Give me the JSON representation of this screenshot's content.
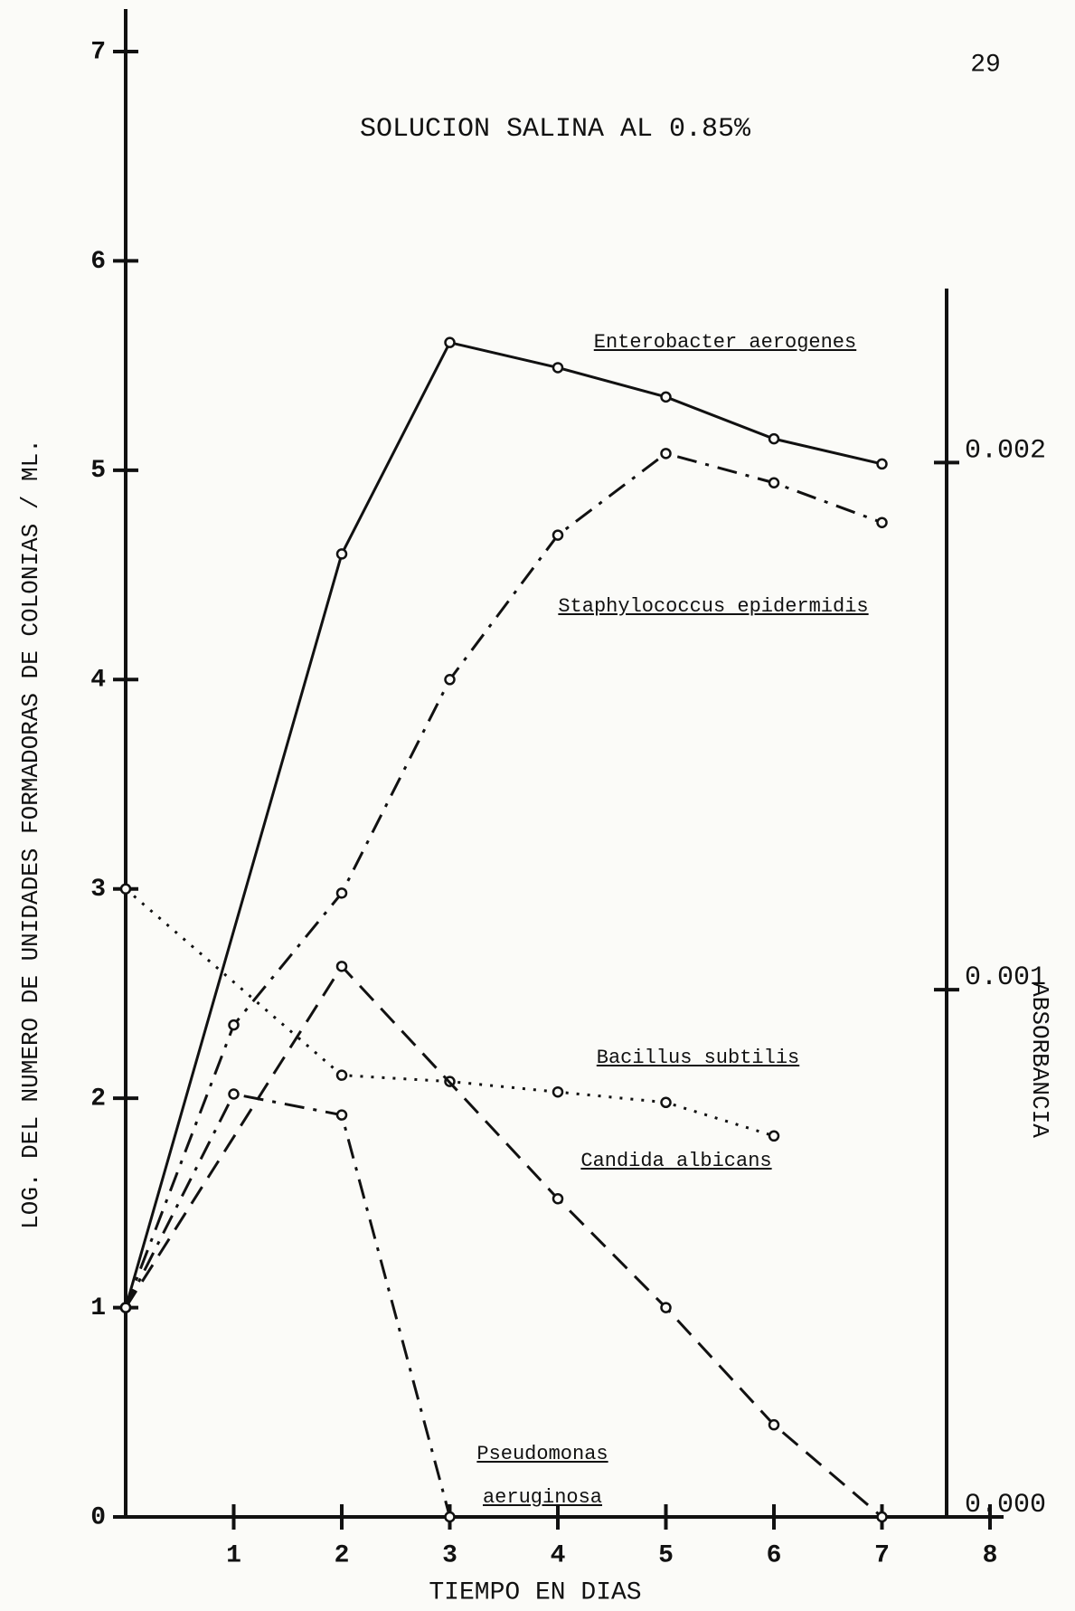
{
  "page_number": "29",
  "chart_data": {
    "type": "line",
    "title": "SOLUCION SALINA AL 0.85%",
    "x_label": "TIEMPO EN DIAS",
    "y_label": "LOG. DEL NUMERO DE UNIDADES FORMADORAS DE COLONIAS / ML.",
    "y2_label": "ABSORBANCIA",
    "xlim": [
      0,
      8
    ],
    "xticks": [
      1,
      2,
      3,
      4,
      5,
      6,
      7,
      8
    ],
    "ylim": [
      0,
      7
    ],
    "yticks": [
      0,
      1,
      2,
      3,
      4,
      5,
      6,
      7
    ],
    "y2lim": [
      0,
      0.00233
    ],
    "y2ticks": [
      {
        "value": 0,
        "label": "0.000"
      },
      {
        "value": 0.001,
        "label": "0.001"
      },
      {
        "value": 0.002,
        "label": "0.002"
      }
    ],
    "series": [
      {
        "name": "Enterobacter aerogenes",
        "color": "#111111",
        "line_style": "solid",
        "x": [
          0,
          2,
          3,
          4,
          5,
          6,
          7
        ],
        "values": [
          1,
          4.6,
          5.61,
          5.49,
          5.35,
          5.15,
          5.03
        ]
      },
      {
        "name": "Staphylococcus epidermidis",
        "color": "#111111",
        "line_style": "dashdot",
        "x": [
          0,
          1,
          2,
          3,
          4,
          5,
          6,
          7
        ],
        "values": [
          1,
          2.35,
          2.98,
          4.0,
          4.69,
          5.08,
          4.94,
          4.75
        ]
      },
      {
        "name": "Bacillus subtilis",
        "color": "#111111",
        "line_style": "dotted",
        "x": [
          0,
          2,
          3,
          4,
          5,
          6
        ],
        "values": [
          3.0,
          2.11,
          2.08,
          2.03,
          1.98,
          1.82
        ]
      },
      {
        "name": "Candida albicans",
        "color": "#111111",
        "line_style": "dashed",
        "x": [
          0,
          2,
          4,
          5,
          6,
          7
        ],
        "values": [
          1,
          2.63,
          1.52,
          1.0,
          0.44,
          0
        ]
      },
      {
        "name": "Pseudomonas aeruginosa",
        "color": "#111111",
        "line_style": "dashdot",
        "x": [
          0,
          1,
          2,
          3
        ],
        "values": [
          1,
          2.02,
          1.92,
          0
        ]
      }
    ]
  }
}
